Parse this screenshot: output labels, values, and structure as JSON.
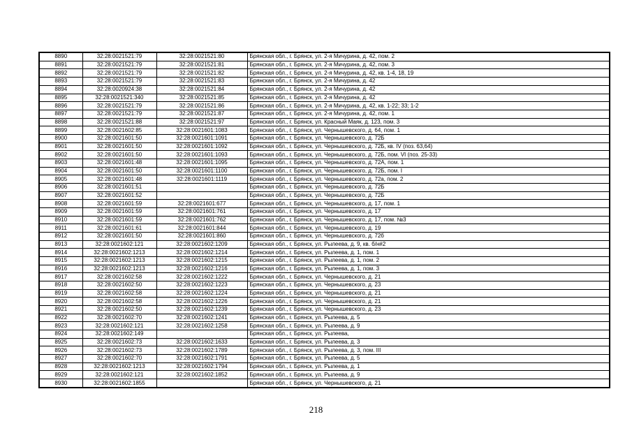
{
  "page": {
    "number": "218"
  },
  "table": {
    "rows": [
      [
        "8890",
        "32:28:0021521:79",
        "32:28:0021521:80",
        "Брянская обл., г. Брянск, ул. 2-я Мичурина, д. 42, пом. 2"
      ],
      [
        "8891",
        "32:28:0021521:79",
        "32:28:0021521:81",
        "Брянская обл., г. Брянск, ул. 2-я Мичурина, д. 42, пом. 3"
      ],
      [
        "8892",
        "32:28:0021521:79",
        "32:28:0021521:82",
        "Брянская обл., г. Брянск, ул. 2-я Мичурина, д. 42, кв. 1-4, 18, 19"
      ],
      [
        "8893",
        "32:28:0021521:79",
        "32:28:0021521:83",
        "Брянская обл., г. Брянск, ул. 2-я Мичурина, д. 42"
      ],
      [
        "8894",
        "32:28:0020924:38",
        "32:28:0021521:84",
        "Брянская обл., г. Брянск, ул. 2-я Мичурина, д. 42"
      ],
      [
        "8895",
        "32:28:0021521:340",
        "32:28:0021521:85",
        "Брянская обл., г. Брянск, ул. 2-я Мичурина, д. 42"
      ],
      [
        "8896",
        "32:28:0021521:79",
        "32:28:0021521:86",
        "Брянская обл., г. Брянск, ул. 2-я Мичурина, д. 42, кв. 1-22; 33; 1-2"
      ],
      [
        "8897",
        "32:28:0021521:79",
        "32:28:0021521:87",
        "Брянская обл., г. Брянск, ул. 2-я Мичурина, д. 42, пом. 1"
      ],
      [
        "8898",
        "32:28:0021521:88",
        "32:28:0021521:97",
        "Брянская обл., г. Брянск, ул. Красный Маяк, д. 123, пом. 3"
      ],
      [
        "8899",
        "32:28:0021602:85",
        "32:28:0021601:1083",
        "Брянская обл., г. Брянск, ул. Чернышевского, д. 64, пом. 1"
      ],
      [
        "8900",
        "32:28:0021601:50",
        "32:28:0021601:1091",
        "Брянская обл., г. Брянск, ул. Чернышевского, д. 72Б"
      ],
      [
        "8901",
        "32:28:0021601:50",
        "32:28:0021601:1092",
        "Брянская обл., г. Брянск, ул. Чернышевского, д. 72Б, кв. IV (поз. 63,64)"
      ],
      [
        "8902",
        "32:28:0021601:50",
        "32:28:0021601:1093",
        "Брянская обл., г. Брянск, ул. Чернышевского, д. 72Б, пом. VI (поз. 25-33)"
      ],
      [
        "8903",
        "32:28:0021601:48",
        "32:28:0021601:1095",
        "Брянская обл., г. Брянск, ул. Чернышевского, д. 72А, пом. 1"
      ],
      [
        "8904",
        "32:28:0021601:50",
        "32:28:0021601:1100",
        "Брянская обл., г. Брянск, ул. Чернышевского, д. 72Б, пом. I"
      ],
      [
        "8905",
        "32:28:0021601:48",
        "32:28:0021601:1119",
        "Брянская обл., г. Брянск, ул. Чернышевского, д. 72а, пом. 2"
      ],
      [
        "8906",
        "32:28:0021601:51",
        "",
        "Брянская обл., г. Брянск, ул. Чернышевского, д. 72Б"
      ],
      [
        "8907",
        "32:28:0021601:52",
        "",
        "Брянская обл., г. Брянск, ул. Чернышевского, д. 72Б"
      ],
      [
        "8908",
        "32:28:0021601:59",
        "32:28:0021601:677",
        "Брянская обл., г. Брянск, ул. Чернышевского, д. 17, пом. 1"
      ],
      [
        "8909",
        "32:28:0021601:59",
        "32:28:0021601:761",
        "Брянская обл., г. Брянск, ул. Чернышевского, д. 17"
      ],
      [
        "8910",
        "32:28:0021601:59",
        "32:28:0021601:762",
        "Брянская обл., г. Брянск, ул. Чернышевского, д. 17, пом. №3"
      ],
      [
        "8911",
        "32:28:0021601:61",
        "32:28:0021601:844",
        "Брянская обл., г. Брянск, ул. Чернышевского, д. 19"
      ],
      [
        "8912",
        "32:28:0021601:50",
        "32:28:0021601:860",
        "Брянская обл., г. Брянск, ул. Чернышевского, д. 72б"
      ],
      [
        "8913",
        "32:28:0021602:121",
        "32:28:0021602:1209",
        "Брянская обл., г. Брянск, ул. Рылеева, д. 9, кв. б/н#2"
      ],
      [
        "8914",
        "32:28:0021602:1213",
        "32:28:0021602:1214",
        "Брянская обл., г. Брянск, ул. Рылеева, д. 1, пом. 1"
      ],
      [
        "8915",
        "32:28:0021602:1213",
        "32:28:0021602:1215",
        "Брянская обл., г. Брянск, ул. Рылеева, д. 1, пом. 2"
      ],
      [
        "8916",
        "32:28:0021602:1213",
        "32:28:0021602:1216",
        "Брянская обл., г. Брянск, ул. Рылеева, д. 1, пом. 3"
      ],
      [
        "8917",
        "32:28:0021602:58",
        "32:28:0021602:1222",
        "Брянская обл., г. Брянск, ул. Чернышевского, д. 21"
      ],
      [
        "8918",
        "32:28:0021602:50",
        "32:28:0021602:1223",
        "Брянская обл., г. Брянск, ул. Чернышевского, д. 23"
      ],
      [
        "8919",
        "32:28:0021602:58",
        "32:28:0021602:1224",
        "Брянская обл., г. Брянск, ул. Чернышевского, д. 21"
      ],
      [
        "8920",
        "32:28:0021602:58",
        "32:28:0021602:1226",
        "Брянская обл., г. Брянск, ул. Чернышевского, д. 21"
      ],
      [
        "8921",
        "32:28:0021602:50",
        "32:28:0021602:1239",
        "Брянская обл., г. Брянск, ул. Чернышевского, д. 23"
      ],
      [
        "8922",
        "32:28:0021602:70",
        "32:28:0021602:1241",
        "Брянская обл., г. Брянск, ул. Рылеева, д. 5"
      ],
      [
        "8923",
        "32:28:0021602:121",
        "32:28:0021602:1258",
        "Брянская обл., г. Брянск, ул. Рылеева, д. 9"
      ],
      [
        "8924",
        "32:28:0021602:149",
        "",
        "Брянская обл., г. Брянск, ул. Рылеева,"
      ],
      [
        "8925",
        "32:28:0021602:73",
        "32:28:0021602:1633",
        "Брянская обл., г. Брянск, ул. Рылеева, д. 3"
      ],
      [
        "8926",
        "32:28:0021602:73",
        "32:28:0021602:1789",
        "Брянская обл., г. Брянск, ул. Рылеева, д. 3, пом. III"
      ],
      [
        "8927",
        "32:28:0021602:70",
        "32:28:0021602:1791",
        "Брянская обл., г. Брянск, ул. Рылеева, д. 5"
      ],
      [
        "8928",
        "32:28:0021602:1213",
        "32:28:0021602:1794",
        "Брянская обл., г. Брянск, ул. Рылеева, д. 1"
      ],
      [
        "8929",
        "32:28:0021602:121",
        "32:28:0021602:1852",
        "Брянская обл., г. Брянск, ул. Рылеева, д. 9"
      ],
      [
        "8930",
        "32:28:0021602:1855",
        "",
        "Брянская обл., г. Брянск, ул. Чернышевского, д. 21"
      ]
    ]
  }
}
